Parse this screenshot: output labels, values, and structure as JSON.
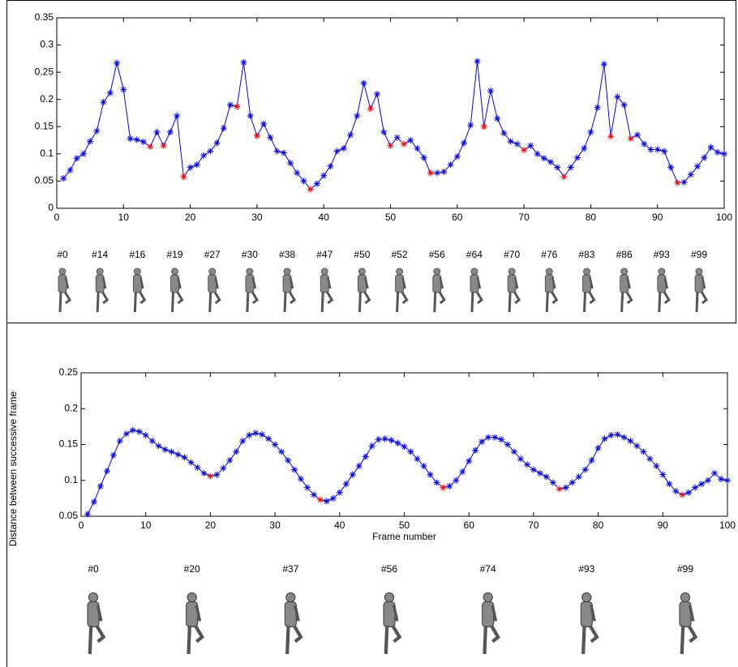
{
  "chart_data": [
    {
      "type": "line",
      "color": "#0000ff",
      "highlight_color": "#ff0000",
      "xlim": [
        0,
        100
      ],
      "xticks": [
        0,
        10,
        20,
        30,
        40,
        50,
        60,
        70,
        80,
        90,
        100
      ],
      "ylim": [
        0,
        0.35
      ],
      "yticks": [
        0,
        0.05,
        0.1,
        0.15,
        0.2,
        0.25,
        0.3,
        0.35
      ],
      "x": [
        1,
        2,
        3,
        4,
        5,
        6,
        7,
        8,
        9,
        10,
        11,
        12,
        13,
        14,
        15,
        16,
        17,
        18,
        19,
        20,
        21,
        22,
        23,
        24,
        25,
        26,
        27,
        28,
        29,
        30,
        31,
        32,
        33,
        34,
        35,
        36,
        37,
        38,
        39,
        40,
        41,
        42,
        43,
        44,
        45,
        46,
        47,
        48,
        49,
        50,
        51,
        52,
        53,
        54,
        55,
        56,
        57,
        58,
        59,
        60,
        61,
        62,
        63,
        64,
        65,
        66,
        67,
        68,
        69,
        70,
        71,
        72,
        73,
        74,
        75,
        76,
        77,
        78,
        79,
        80,
        81,
        82,
        83,
        84,
        85,
        86,
        87,
        88,
        89,
        90,
        91,
        92,
        93,
        94,
        95,
        96,
        97,
        98,
        99,
        100
      ],
      "values": [
        0.055,
        0.07,
        0.092,
        0.1,
        0.123,
        0.142,
        0.195,
        0.212,
        0.267,
        0.218,
        0.128,
        0.126,
        0.122,
        0.113,
        0.14,
        0.115,
        0.14,
        0.17,
        0.058,
        0.075,
        0.08,
        0.097,
        0.105,
        0.12,
        0.147,
        0.19,
        0.187,
        0.268,
        0.17,
        0.133,
        0.155,
        0.13,
        0.105,
        0.102,
        0.083,
        0.065,
        0.05,
        0.035,
        0.045,
        0.06,
        0.077,
        0.105,
        0.11,
        0.135,
        0.17,
        0.23,
        0.183,
        0.21,
        0.14,
        0.115,
        0.13,
        0.118,
        0.125,
        0.11,
        0.093,
        0.065,
        0.065,
        0.067,
        0.08,
        0.095,
        0.12,
        0.153,
        0.27,
        0.15,
        0.216,
        0.165,
        0.138,
        0.123,
        0.118,
        0.107,
        0.115,
        0.1,
        0.092,
        0.085,
        0.075,
        0.058,
        0.075,
        0.093,
        0.11,
        0.14,
        0.185,
        0.265,
        0.132,
        0.205,
        0.19,
        0.128,
        0.135,
        0.118,
        0.108,
        0.108,
        0.105,
        0.075,
        0.047,
        0.048,
        0.062,
        0.077,
        0.093,
        0.112,
        0.103,
        0.1
      ],
      "highlight_x": [
        14,
        16,
        19,
        27,
        30,
        38,
        47,
        50,
        52,
        56,
        64,
        70,
        76,
        83,
        86,
        93
      ],
      "frame_labels": [
        "#0",
        "#14",
        "#16",
        "#19",
        "#27",
        "#30",
        "#38",
        "#47",
        "#50",
        "#52",
        "#56",
        "#64",
        "#70",
        "#76",
        "#83",
        "#86",
        "#93",
        "#99"
      ]
    },
    {
      "type": "line",
      "color": "#0000ff",
      "highlight_color": "#ff0000",
      "x_label": "Frame number",
      "y_label": "Distance between successive frame",
      "xlim": [
        0,
        100
      ],
      "xticks": [
        0,
        10,
        20,
        30,
        40,
        50,
        60,
        70,
        80,
        90,
        100
      ],
      "ylim": [
        0.05,
        0.25
      ],
      "yticks": [
        0.05,
        0.1,
        0.15,
        0.2,
        0.25
      ],
      "x": [
        1,
        2,
        3,
        4,
        5,
        6,
        7,
        8,
        9,
        10,
        11,
        12,
        13,
        14,
        15,
        16,
        17,
        18,
        19,
        20,
        21,
        22,
        23,
        24,
        25,
        26,
        27,
        28,
        29,
        30,
        31,
        32,
        33,
        34,
        35,
        36,
        37,
        38,
        39,
        40,
        41,
        42,
        43,
        44,
        45,
        46,
        47,
        48,
        49,
        50,
        51,
        52,
        53,
        54,
        55,
        56,
        57,
        58,
        59,
        60,
        61,
        62,
        63,
        64,
        65,
        66,
        67,
        68,
        69,
        70,
        71,
        72,
        73,
        74,
        75,
        76,
        77,
        78,
        79,
        80,
        81,
        82,
        83,
        84,
        85,
        86,
        87,
        88,
        89,
        90,
        91,
        92,
        93,
        94,
        95,
        96,
        97,
        98,
        99,
        100
      ],
      "values": [
        0.053,
        0.07,
        0.092,
        0.113,
        0.135,
        0.155,
        0.165,
        0.17,
        0.168,
        0.163,
        0.155,
        0.148,
        0.143,
        0.14,
        0.136,
        0.132,
        0.125,
        0.118,
        0.11,
        0.106,
        0.108,
        0.117,
        0.128,
        0.14,
        0.155,
        0.163,
        0.166,
        0.164,
        0.158,
        0.15,
        0.14,
        0.128,
        0.115,
        0.102,
        0.09,
        0.08,
        0.073,
        0.071,
        0.075,
        0.083,
        0.095,
        0.108,
        0.12,
        0.133,
        0.148,
        0.157,
        0.158,
        0.156,
        0.152,
        0.147,
        0.14,
        0.13,
        0.12,
        0.108,
        0.097,
        0.09,
        0.092,
        0.1,
        0.112,
        0.127,
        0.142,
        0.154,
        0.16,
        0.16,
        0.157,
        0.15,
        0.14,
        0.13,
        0.122,
        0.115,
        0.11,
        0.105,
        0.097,
        0.088,
        0.09,
        0.097,
        0.105,
        0.115,
        0.128,
        0.145,
        0.158,
        0.163,
        0.164,
        0.16,
        0.155,
        0.148,
        0.14,
        0.13,
        0.12,
        0.108,
        0.095,
        0.085,
        0.08,
        0.083,
        0.09,
        0.095,
        0.1,
        0.11,
        0.102,
        0.1
      ],
      "highlight_x": [
        20,
        37,
        56,
        74,
        93
      ],
      "frame_labels": [
        "#0",
        "#20",
        "#37",
        "#56",
        "#74",
        "#93",
        "#99"
      ]
    }
  ]
}
